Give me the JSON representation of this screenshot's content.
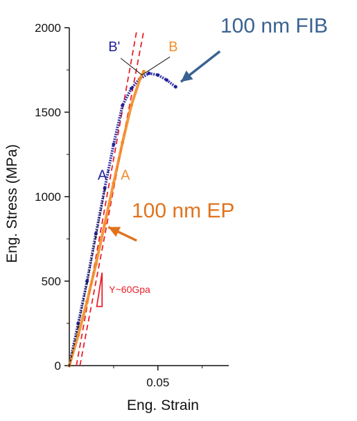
{
  "chart_data": {
    "type": "line",
    "xlabel": "Eng. Strain",
    "ylabel": "Eng. Stress (MPa)",
    "xlim": [
      0,
      0.09
    ],
    "ylim": [
      0,
      2000
    ],
    "x_ticks": [
      {
        "value": 0.05,
        "label": "0.05"
      }
    ],
    "y_ticks": [
      {
        "value": 0,
        "label": "0"
      },
      {
        "value": 500,
        "label": "500"
      },
      {
        "value": 1000,
        "label": "1000"
      },
      {
        "value": 1500,
        "label": "1500"
      },
      {
        "value": 2000,
        "label": "2000"
      }
    ],
    "series": [
      {
        "key": "fib",
        "color": "#1f1f9a",
        "x": [
          0,
          0.005,
          0.01,
          0.015,
          0.02,
          0.025,
          0.03,
          0.035,
          0.04,
          0.045,
          0.05,
          0.055,
          0.06
        ],
        "y": [
          0,
          250,
          500,
          780,
          1050,
          1310,
          1540,
          1640,
          1700,
          1730,
          1720,
          1690,
          1650
        ]
      },
      {
        "key": "ep",
        "color": "#f28c28",
        "x": [
          0,
          0.005,
          0.01,
          0.015,
          0.02,
          0.025,
          0.03,
          0.035,
          0.04,
          0.042
        ],
        "y": [
          0,
          180,
          380,
          600,
          840,
          1080,
          1320,
          1540,
          1700,
          1740
        ]
      },
      {
        "key": "black-fit",
        "color": "#222222",
        "x": [
          0,
          0.005,
          0.01,
          0.015,
          0.02
        ],
        "y": [
          0,
          230,
          490,
          760,
          1040
        ]
      }
    ],
    "fit_lines": [
      {
        "color": "#e8202a",
        "x": [
          0.004,
          0.038
        ],
        "y": [
          0,
          1980
        ]
      },
      {
        "color": "#e8202a",
        "x": [
          0.006,
          0.042
        ],
        "y": [
          0,
          1980
        ]
      }
    ],
    "labels": {
      "fib": {
        "text": "100 nm FIB",
        "color": "#3a6291"
      },
      "ep": {
        "text": "100 nm EP",
        "color": "#e0731e"
      },
      "a_prime": {
        "text": "A'",
        "color": "#1f1f9a"
      },
      "a": {
        "text": "A",
        "color": "#f28c28"
      },
      "b_prime": {
        "text": "B'",
        "color": "#1f1f9a"
      },
      "b": {
        "text": "B",
        "color": "#f28c28"
      },
      "modulus": {
        "text": "Y~60Gpa",
        "color": "#e8202a"
      }
    },
    "label_points": {
      "a_prime": [
        0.016,
        1100
      ],
      "a": [
        0.029,
        1100
      ],
      "b_prime": [
        0.022,
        1860
      ],
      "b": [
        0.056,
        1860
      ],
      "b_point": [
        0.041,
        1720
      ]
    },
    "arrows": [
      {
        "key": "fib",
        "color": "#3a6291",
        "from": [
          0.085,
          1860
        ],
        "to": [
          0.063,
          1680
        ]
      },
      {
        "key": "ep",
        "color": "#e0731e",
        "from": [
          0.038,
          740
        ],
        "to": [
          0.022,
          820
        ]
      }
    ],
    "modulus_triangle": {
      "x": [
        0.0155,
        0.0185
      ],
      "y": [
        350,
        550
      ]
    }
  }
}
